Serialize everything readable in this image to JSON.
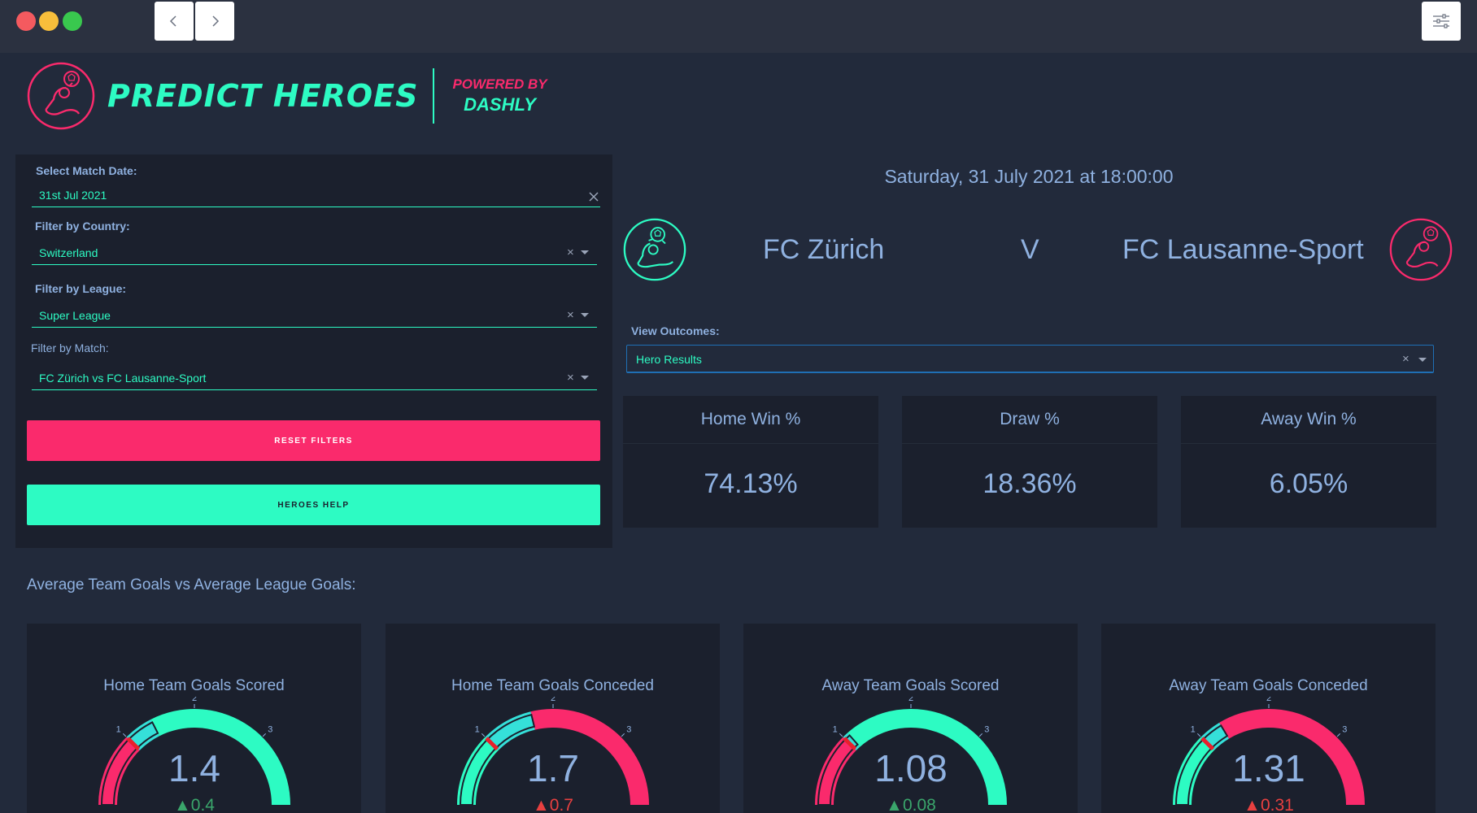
{
  "window": {
    "buttons": [
      "back",
      "forward"
    ],
    "settings_icon": "sliders-icon"
  },
  "brand": {
    "title": "PREDICT HEROES",
    "powered_line1": "POWERED BY",
    "powered_line2": "DASHLY",
    "logo_icon": "goalkeeper-icon",
    "colors": {
      "accent": "#2dfbc3",
      "secondary": "#fa2a6c"
    }
  },
  "filters": {
    "date_label": "Select Match Date:",
    "date_value": "31st Jul 2021",
    "country_label": "Filter by Country:",
    "country_value": "Switzerland",
    "league_label": "Filter by League:",
    "league_value": "Super League",
    "match_label": "Filter by Match:",
    "match_value": "FC Zürich vs FC Lausanne-Sport",
    "clear_symbol": "×",
    "reset_label": "RESET FILTERS",
    "help_label": "HEROES HELP"
  },
  "match": {
    "datetime": "Saturday, 31 July 2021 at 18:00:00",
    "home_team": "FC Zürich",
    "vs": "V",
    "away_team": "FC Lausanne-Sport"
  },
  "outcomes": {
    "label": "View Outcomes:",
    "value": "Hero Results"
  },
  "stats": [
    {
      "label": "Home Win %",
      "value": "74.13%"
    },
    {
      "label": "Draw %",
      "value": "18.36%"
    },
    {
      "label": "Away Win %",
      "value": "6.05%"
    }
  ],
  "section_title": "Average Team Goals vs Average League Goals:",
  "gauges": [
    {
      "title": "Home Team Goals Scored",
      "value": 1.4,
      "value_text": "1.4",
      "delta_text": "0.4",
      "delta_dir": "up",
      "reference": 1.0
    },
    {
      "title": "Home Team Goals Conceded",
      "value": 1.7,
      "value_text": "1.7",
      "delta_text": "0.7",
      "delta_dir": "up-bad",
      "reference": 1.0
    },
    {
      "title": "Away Team Goals Scored",
      "value": 1.08,
      "value_text": "1.08",
      "delta_text": "0.08",
      "delta_dir": "up",
      "reference": 1.0
    },
    {
      "title": "Away Team Goals Conceded",
      "value": 1.31,
      "value_text": "1.31",
      "delta_text": "0.31",
      "delta_dir": "up-bad",
      "reference": 1.0
    }
  ],
  "gauge_axis": {
    "min": 0,
    "max": 4,
    "ticks": [
      "1",
      "2",
      "3"
    ]
  }
}
